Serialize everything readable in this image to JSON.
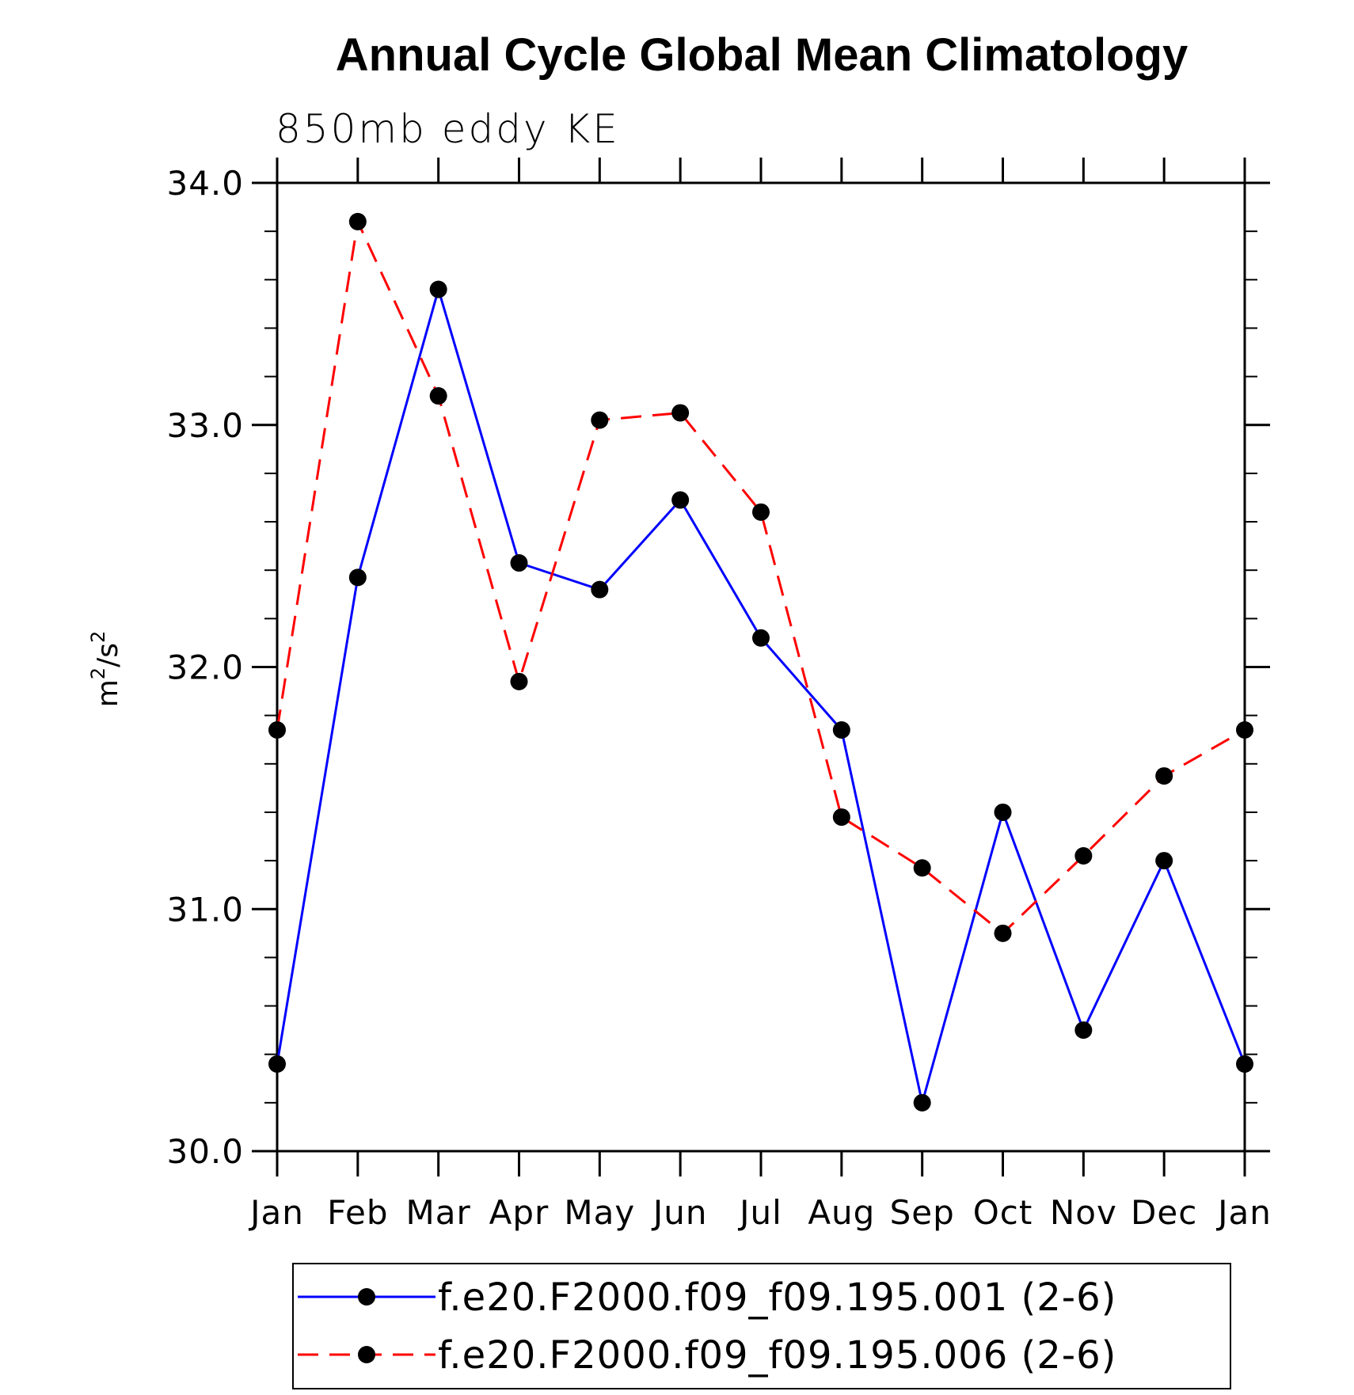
{
  "chart_data": {
    "type": "line",
    "title": "Annual Cycle Global Mean Climatology",
    "subtitle": "850mb eddy KE",
    "ylabel": {
      "base": "m",
      "sup1": "2",
      "mid": "/s",
      "sup2": "2"
    },
    "categories": [
      "Jan",
      "Feb",
      "Mar",
      "Apr",
      "May",
      "Jun",
      "Jul",
      "Aug",
      "Sep",
      "Oct",
      "Nov",
      "Dec",
      "Jan"
    ],
    "ylim": [
      30.0,
      34.0
    ],
    "yticks": [
      "30.0",
      "31.0",
      "32.0",
      "33.0",
      "34.0"
    ],
    "series": [
      {
        "name": "f.e20.F2000.f09_f09.195.001 (2-6)",
        "color": "#0000ff",
        "dash": "solid",
        "values": [
          30.36,
          32.37,
          33.56,
          32.43,
          32.32,
          32.69,
          32.12,
          31.74,
          30.2,
          31.4,
          30.5,
          31.2,
          30.36
        ]
      },
      {
        "name": "f.e20.F2000.f09_f09.195.006 (2-6)",
        "color": "#ff0000",
        "dash": "dashed",
        "values": [
          31.74,
          33.84,
          33.12,
          31.94,
          33.02,
          33.05,
          32.64,
          31.38,
          31.17,
          30.9,
          31.22,
          31.55,
          31.74
        ]
      }
    ],
    "legend_position": "bottom"
  }
}
